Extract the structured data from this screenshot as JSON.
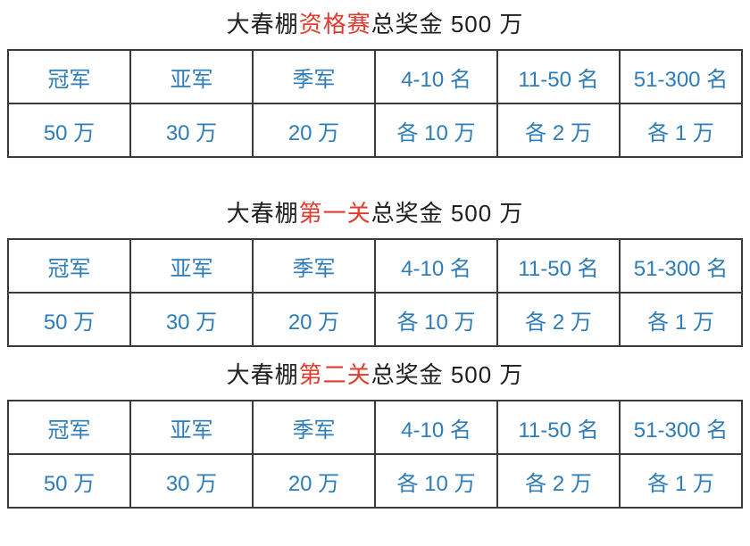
{
  "colors": {
    "title_text": "#1f1f1f",
    "title_highlight_red": "#e03b2e",
    "table_text_blue": "#2e7cb8",
    "table_border": "#3a3a3a",
    "background": "#ffffff"
  },
  "sections": [
    {
      "title": {
        "prefix": "大春棚",
        "highlight": "资格赛",
        "suffix": "总奖金 500 万"
      },
      "table": {
        "headers": [
          "冠军",
          "亚军",
          "季军",
          "4-10 名",
          "11-50 名",
          "51-300 名"
        ],
        "values": [
          "50 万",
          "30 万",
          "20 万",
          "各 10 万",
          "各 2 万",
          "各 1 万"
        ]
      }
    },
    {
      "title": {
        "prefix": "大春棚",
        "highlight": "第一关",
        "suffix": "总奖金 500 万"
      },
      "table": {
        "headers": [
          "冠军",
          "亚军",
          "季军",
          "4-10 名",
          "11-50 名",
          "51-300 名"
        ],
        "values": [
          "50 万",
          "30 万",
          "20 万",
          "各 10 万",
          "各 2 万",
          "各 1 万"
        ]
      }
    },
    {
      "title": {
        "prefix": "大春棚",
        "highlight": "第二关",
        "suffix": "总奖金 500 万"
      },
      "table": {
        "headers": [
          "冠军",
          "亚军",
          "季军",
          "4-10 名",
          "11-50 名",
          "51-300 名"
        ],
        "values": [
          "50 万",
          "30 万",
          "20 万",
          "各 10 万",
          "各 2 万",
          "各 1 万"
        ]
      }
    }
  ]
}
